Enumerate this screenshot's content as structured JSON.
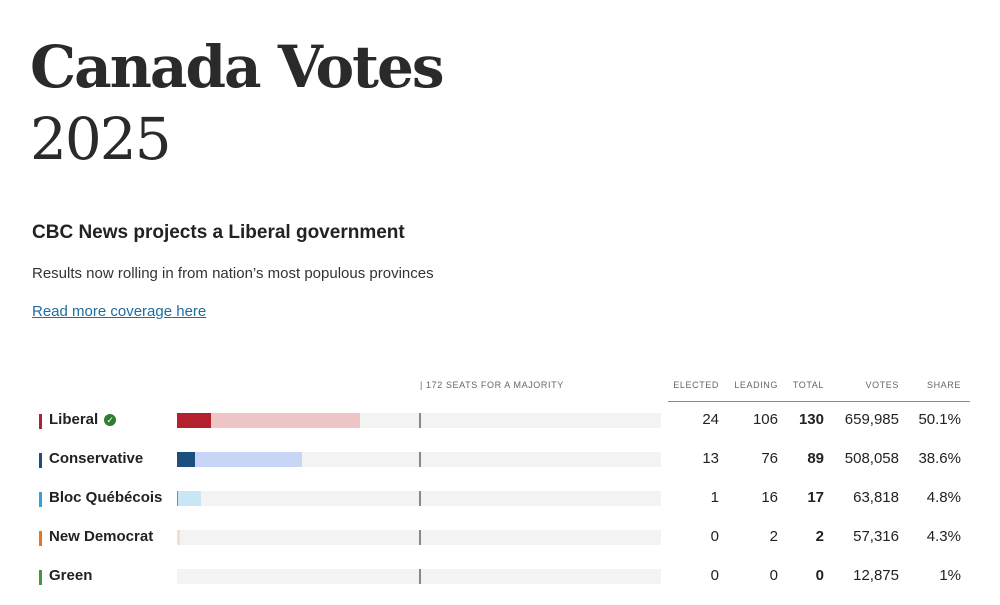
{
  "header": {
    "title": "Canada Votes",
    "year": "2025"
  },
  "story": {
    "headline": "CBC News projects a Liberal government",
    "subhead": "Results now rolling in from nation’s most populous provinces",
    "link_label": "Read more coverage here"
  },
  "table": {
    "majority_note": "| 172 SEATS FOR A MAJORITY",
    "majority_seats": 172,
    "headers": {
      "elected": "ELECTED",
      "leading": "LEADING",
      "total": "TOTAL",
      "votes": "VOTES",
      "share": "SHARE"
    },
    "rows": [
      {
        "party": "Liberal",
        "winner": true,
        "elected": "24",
        "leading": "106",
        "total": "130",
        "votes": "659,985",
        "share": "50.1%",
        "color": "#b5202e",
        "light_color": "#eec4c6",
        "elected_n": 24,
        "total_n": 130
      },
      {
        "party": "Conservative",
        "winner": false,
        "elected": "13",
        "leading": "76",
        "total": "89",
        "votes": "508,058",
        "share": "38.6%",
        "color": "#1c4e80",
        "light_color": "#c8d6f5",
        "elected_n": 13,
        "total_n": 89
      },
      {
        "party": "Bloc Québécois",
        "winner": false,
        "elected": "1",
        "leading": "16",
        "total": "17",
        "votes": "63,818",
        "share": "4.8%",
        "color": "#2fa4d8",
        "light_color": "#c9e6f6",
        "elected_n": 1,
        "total_n": 17
      },
      {
        "party": "New Democrat",
        "winner": false,
        "elected": "0",
        "leading": "2",
        "total": "2",
        "votes": "57,316",
        "share": "4.3%",
        "color": "#e8741c",
        "light_color": "#f9dcc6",
        "elected_n": 0,
        "total_n": 2
      },
      {
        "party": "Green",
        "winner": false,
        "elected": "0",
        "leading": "0",
        "total": "0",
        "votes": "12,875",
        "share": "1%",
        "color": "#3d9a3d",
        "light_color": "#cfe8cf",
        "elected_n": 0,
        "total_n": 0
      }
    ]
  }
}
